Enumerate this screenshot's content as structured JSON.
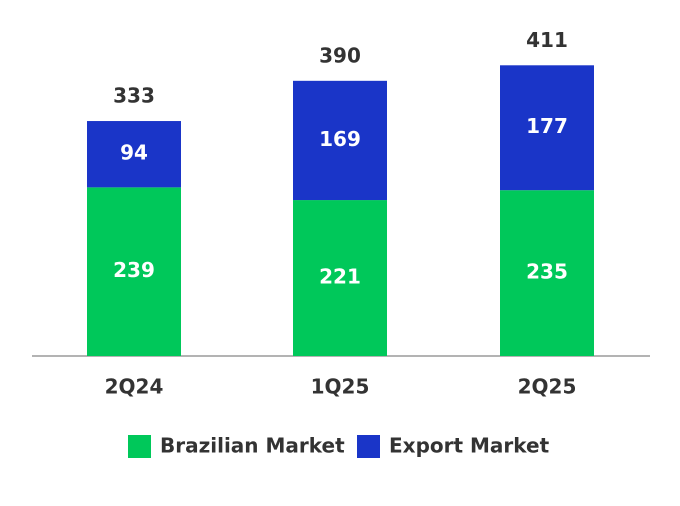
{
  "chart_data": {
    "type": "stacked_bar",
    "categories": [
      "2Q24",
      "1Q25",
      "2Q25"
    ],
    "series": [
      {
        "name": "Brazilian Market",
        "color": "#00c85a",
        "values": [
          239,
          221,
          235
        ]
      },
      {
        "name": "Export Market",
        "color": "#1a35c8",
        "values": [
          94,
          169,
          177
        ]
      }
    ],
    "totals": [
      333,
      390,
      411
    ]
  }
}
